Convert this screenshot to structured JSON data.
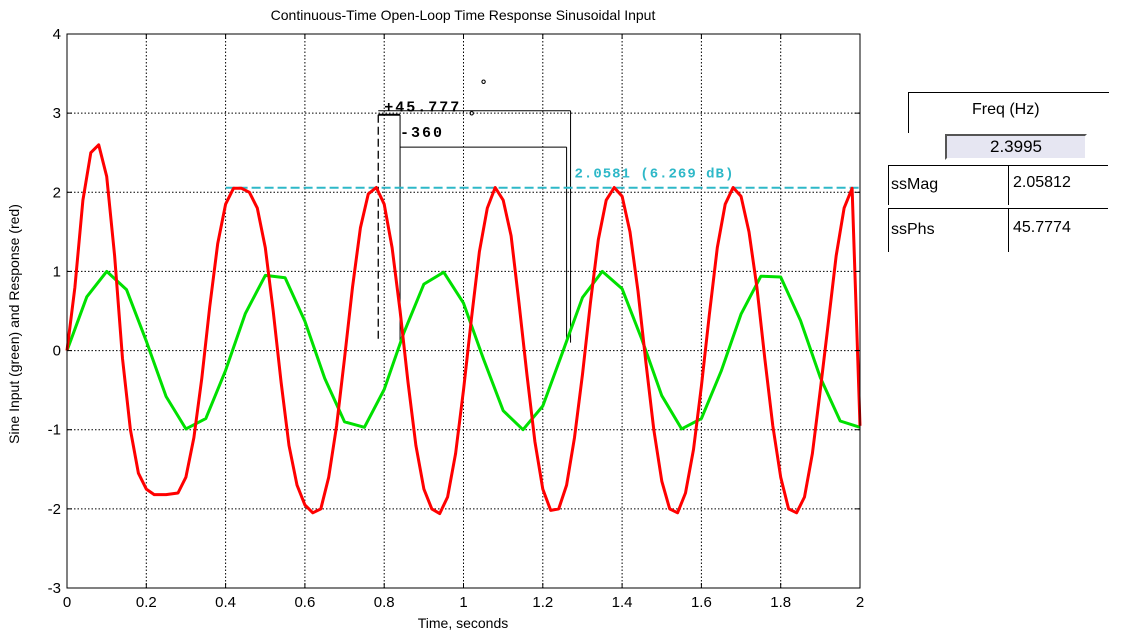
{
  "chart_data": {
    "type": "line",
    "title": "Continuous-Time Open-Loop Time Response Sinusoidal Input",
    "xlabel": "Time, seconds",
    "ylabel": "Sine Input (green) and Response (red)",
    "xlim": [
      0,
      2
    ],
    "ylim": [
      -3,
      4
    ],
    "xticks": [
      0,
      0.2,
      0.4,
      0.6,
      0.8,
      1,
      1.2,
      1.4,
      1.6,
      1.8,
      2
    ],
    "xtick_labels": [
      "0",
      "0.2",
      "0.4",
      "0.6",
      "0.8",
      "1",
      "1.2",
      "1.4",
      "1.6",
      "1.8",
      "2"
    ],
    "yticks": [
      -3,
      -2,
      -1,
      0,
      1,
      2,
      3,
      4
    ],
    "ytick_labels": [
      "-3",
      "-2",
      "-1",
      "0",
      "1",
      "2",
      "3",
      "4"
    ],
    "grid": true,
    "series": [
      {
        "color": "#00e000",
        "x": [
          0,
          0.05,
          0.1,
          0.15,
          0.2,
          0.25,
          0.3,
          0.35,
          0.4,
          0.45,
          0.5,
          0.55,
          0.6,
          0.65,
          0.7,
          0.75,
          0.8,
          0.85,
          0.9,
          0.95,
          1.0,
          1.05,
          1.1,
          1.15,
          1.2,
          1.25,
          1.3,
          1.35,
          1.4,
          1.45,
          1.5,
          1.55,
          1.6,
          1.65,
          1.7,
          1.75,
          1.8,
          1.85,
          1.9,
          1.95,
          2.0
        ],
        "y": [
          0,
          0.68,
          1.0,
          0.77,
          0.12,
          -0.58,
          -0.99,
          -0.86,
          -0.25,
          0.47,
          0.95,
          0.92,
          0.37,
          -0.35,
          -0.9,
          -0.97,
          -0.49,
          0.23,
          0.84,
          0.99,
          0.6,
          -0.1,
          -0.76,
          -1.0,
          -0.7,
          -0.02,
          0.67,
          1.0,
          0.78,
          0.14,
          -0.57,
          -0.99,
          -0.86,
          -0.26,
          0.46,
          0.94,
          0.93,
          0.38,
          -0.34,
          -0.89,
          -0.97
        ]
      },
      {
        "color": "#ff0000",
        "x": [
          0,
          0.02,
          0.04,
          0.06,
          0.08,
          0.1,
          0.12,
          0.14,
          0.16,
          0.18,
          0.2,
          0.22,
          0.25,
          0.28,
          0.3,
          0.32,
          0.34,
          0.36,
          0.38,
          0.4,
          0.42,
          0.44,
          0.46,
          0.48,
          0.5,
          0.52,
          0.54,
          0.56,
          0.58,
          0.6,
          0.62,
          0.64,
          0.66,
          0.68,
          0.7,
          0.72,
          0.74,
          0.76,
          0.78,
          0.8,
          0.82,
          0.84,
          0.86,
          0.88,
          0.9,
          0.92,
          0.94,
          0.96,
          0.98,
          1.0,
          1.02,
          1.04,
          1.06,
          1.08,
          1.1,
          1.12,
          1.14,
          1.16,
          1.18,
          1.2,
          1.22,
          1.24,
          1.26,
          1.28,
          1.3,
          1.32,
          1.34,
          1.36,
          1.38,
          1.4,
          1.42,
          1.44,
          1.46,
          1.48,
          1.5,
          1.52,
          1.54,
          1.56,
          1.58,
          1.6,
          1.62,
          1.64,
          1.66,
          1.68,
          1.7,
          1.72,
          1.74,
          1.76,
          1.78,
          1.8,
          1.82,
          1.84,
          1.86,
          1.88,
          1.9,
          1.92,
          1.94,
          1.96,
          1.98,
          2.0
        ],
        "y": [
          0,
          0.8,
          1.9,
          2.5,
          2.6,
          2.2,
          1.2,
          -0.1,
          -1.0,
          -1.55,
          -1.75,
          -1.82,
          -1.82,
          -1.8,
          -1.6,
          -1.1,
          -0.35,
          0.55,
          1.35,
          1.85,
          2.05,
          2.05,
          2.0,
          1.8,
          1.3,
          0.5,
          -0.4,
          -1.2,
          -1.7,
          -1.95,
          -2.05,
          -2.0,
          -1.6,
          -0.95,
          -0.1,
          0.8,
          1.55,
          1.98,
          2.06,
          1.85,
          1.3,
          0.5,
          -0.4,
          -1.2,
          -1.75,
          -2.0,
          -2.06,
          -1.85,
          -1.3,
          -0.5,
          0.4,
          1.25,
          1.8,
          2.06,
          1.9,
          1.45,
          0.6,
          -0.3,
          -1.15,
          -1.75,
          -2.02,
          -2.0,
          -1.7,
          -1.1,
          -0.3,
          0.6,
          1.4,
          1.9,
          2.06,
          1.95,
          1.5,
          0.75,
          -0.15,
          -1.0,
          -1.65,
          -2.0,
          -2.05,
          -1.8,
          -1.25,
          -0.45,
          0.45,
          1.3,
          1.85,
          2.06,
          1.95,
          1.5,
          0.8,
          -0.1,
          -0.95,
          -1.6,
          -2.0,
          -2.05,
          -1.85,
          -1.3,
          -0.5,
          0.35,
          1.2,
          1.8,
          2.05,
          -0.95
        ]
      }
    ],
    "hline": {
      "y": 2.0581,
      "x_from": 0.4,
      "x_to": 2.0,
      "color": "#2eb8c8",
      "label": "2.0581 (6.269 dB)",
      "label_x": 1.28
    },
    "annotations": [
      {
        "text": "+45.777",
        "x": 0.8,
        "y": 3.02,
        "color": "#000000"
      },
      {
        "text": "-360",
        "x": 0.84,
        "y": 2.7,
        "color": "#000000"
      },
      {
        "text": "°",
        "x": 1.04,
        "y": 3.3,
        "color": "#000000"
      },
      {
        "text": "°",
        "x": 1.01,
        "y": 2.9,
        "color": "#000000"
      }
    ],
    "marker_lines": {
      "phase_start": 0.785,
      "phase_end": 0.84,
      "phase_top": 2.98,
      "period_end": 1.26,
      "period_top": 2.57,
      "period_outer": 1.26,
      "outer_top": 3.03
    }
  },
  "panel": {
    "freq_label": "Freq (Hz)",
    "freq_value": "2.3995",
    "ssmag_label": "ssMag",
    "ssmag_value": "2.05812",
    "ssphs_label": "ssPhs",
    "ssphs_value": "45.7774"
  }
}
